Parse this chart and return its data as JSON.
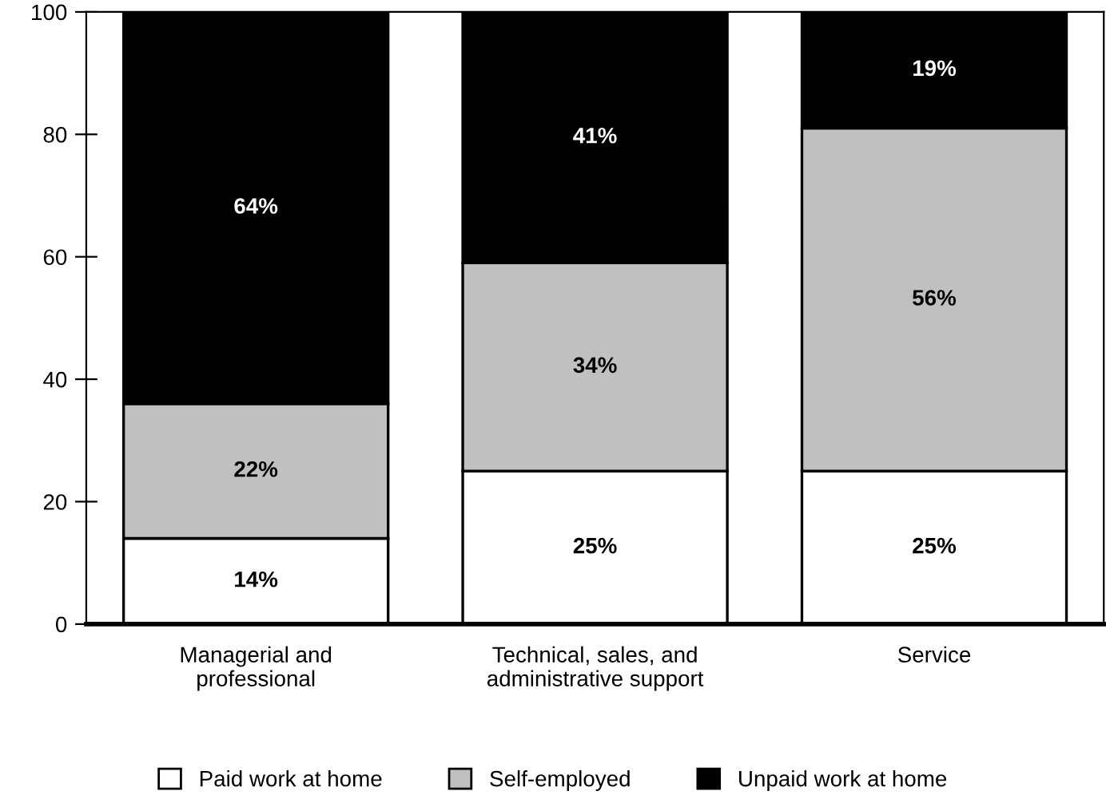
{
  "chart_data": {
    "type": "bar",
    "stacked": true,
    "categories": [
      "Managerial and\nprofessional",
      "Technical, sales, and\nadministrative support",
      "Service"
    ],
    "series": [
      {
        "name": "Paid work at home",
        "color": "#ffffff",
        "values": [
          14,
          25,
          25
        ],
        "value_labels": [
          "14%",
          "25%",
          "25%"
        ]
      },
      {
        "name": "Self-employed",
        "color": "#c0c0c0",
        "values": [
          22,
          34,
          56
        ],
        "value_labels": [
          "22%",
          "34%",
          "56%"
        ]
      },
      {
        "name": "Unpaid work at home",
        "color": "#000000",
        "values": [
          64,
          41,
          19
        ],
        "value_labels": [
          "64%",
          "41%",
          "19%"
        ]
      }
    ],
    "ylim": [
      0,
      100
    ],
    "yticks": [
      0,
      20,
      40,
      60,
      80,
      100
    ],
    "grid": false,
    "legend": "bottom"
  }
}
